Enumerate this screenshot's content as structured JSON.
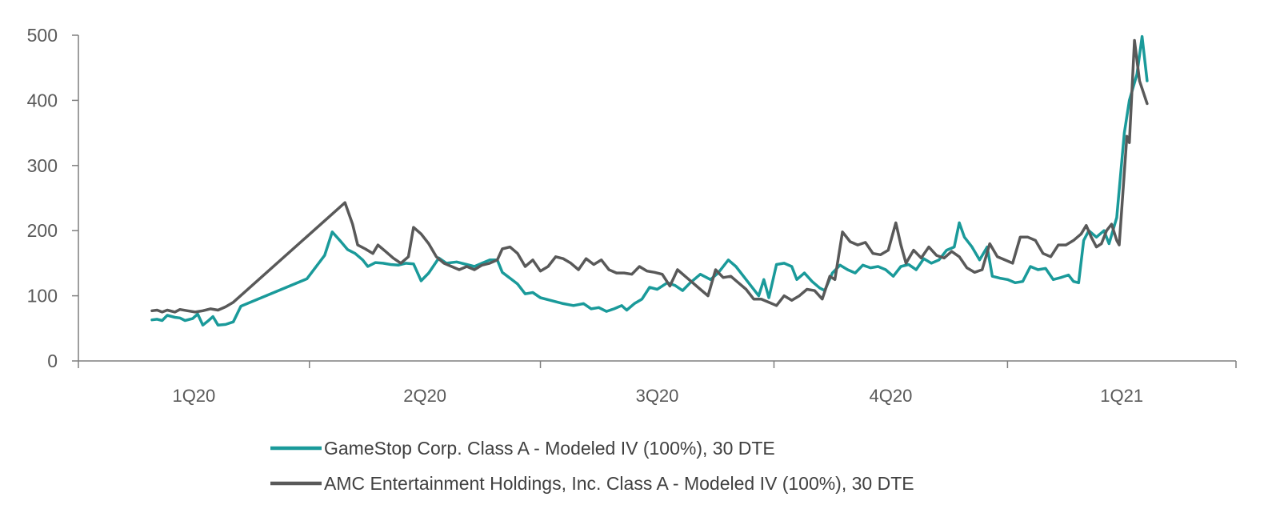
{
  "chart_data": {
    "type": "line",
    "title": "",
    "xlabel": "",
    "ylabel": "",
    "ylim": [
      0,
      500
    ],
    "yticks": [
      "0",
      "100",
      "200",
      "300",
      "400",
      "500"
    ],
    "xlim": [
      "2020-01-01",
      "2021-04-01"
    ],
    "xticks": [
      {
        "label": "1Q20",
        "start": "2020-01-01",
        "end": "2020-04-01"
      },
      {
        "label": "2Q20",
        "start": "2020-04-01",
        "end": "2020-07-01"
      },
      {
        "label": "3Q20",
        "start": "2020-07-01",
        "end": "2020-10-01"
      },
      {
        "label": "4Q20",
        "start": "2020-10-01",
        "end": "2021-01-01"
      },
      {
        "label": "1Q21",
        "start": "2021-01-01",
        "end": "2021-04-01"
      }
    ],
    "grid": false,
    "legend_position": "bottom",
    "colors": {
      "gamestop": "#1a9a9a",
      "amc": "#595959",
      "axis": "#7f7f7f",
      "text": "#595959"
    },
    "series": [
      {
        "name": "GameStop Corp. Class A - Modeled IV (100%), 30 DTE",
        "color": "#1a9a9a",
        "points": [
          [
            "2020-01-30",
            63
          ],
          [
            "2020-02-01",
            64
          ],
          [
            "2020-02-03",
            62
          ],
          [
            "2020-02-05",
            70
          ],
          [
            "2020-02-08",
            67
          ],
          [
            "2020-02-10",
            66
          ],
          [
            "2020-02-12",
            62
          ],
          [
            "2020-02-15",
            65
          ],
          [
            "2020-02-17",
            72
          ],
          [
            "2020-02-19",
            55
          ],
          [
            "2020-02-21",
            61
          ],
          [
            "2020-02-23",
            68
          ],
          [
            "2020-02-25",
            55
          ],
          [
            "2020-02-28",
            56
          ],
          [
            "2020-03-02",
            60
          ],
          [
            "2020-03-05",
            84
          ],
          [
            "2020-03-31",
            126
          ],
          [
            "2020-04-07",
            162
          ],
          [
            "2020-04-10",
            198
          ],
          [
            "2020-04-13",
            185
          ],
          [
            "2020-04-16",
            171
          ],
          [
            "2020-04-19",
            165
          ],
          [
            "2020-04-22",
            155
          ],
          [
            "2020-04-24",
            145
          ],
          [
            "2020-04-27",
            151
          ],
          [
            "2020-04-30",
            150
          ],
          [
            "2020-05-03",
            148
          ],
          [
            "2020-05-06",
            147
          ],
          [
            "2020-05-09",
            150
          ],
          [
            "2020-05-12",
            149
          ],
          [
            "2020-05-15",
            123
          ],
          [
            "2020-05-18",
            135
          ],
          [
            "2020-05-22",
            158
          ],
          [
            "2020-05-25",
            150
          ],
          [
            "2020-05-29",
            152
          ],
          [
            "2020-06-02",
            148
          ],
          [
            "2020-06-05",
            145
          ],
          [
            "2020-06-08",
            150
          ],
          [
            "2020-06-11",
            155
          ],
          [
            "2020-06-14",
            155
          ],
          [
            "2020-06-16",
            136
          ],
          [
            "2020-06-18",
            130
          ],
          [
            "2020-06-22",
            118
          ],
          [
            "2020-06-25",
            103
          ],
          [
            "2020-06-28",
            105
          ],
          [
            "2020-07-01",
            97
          ],
          [
            "2020-07-05",
            93
          ],
          [
            "2020-07-10",
            88
          ],
          [
            "2020-07-14",
            85
          ],
          [
            "2020-07-18",
            88
          ],
          [
            "2020-07-21",
            80
          ],
          [
            "2020-07-24",
            82
          ],
          [
            "2020-07-27",
            76
          ],
          [
            "2020-07-30",
            80
          ],
          [
            "2020-08-02",
            85
          ],
          [
            "2020-08-04",
            78
          ],
          [
            "2020-08-07",
            88
          ],
          [
            "2020-08-10",
            95
          ],
          [
            "2020-08-13",
            113
          ],
          [
            "2020-08-16",
            110
          ],
          [
            "2020-08-20",
            120
          ],
          [
            "2020-08-23",
            116
          ],
          [
            "2020-08-26",
            108
          ],
          [
            "2020-08-29",
            120
          ],
          [
            "2020-09-02",
            133
          ],
          [
            "2020-09-06",
            125
          ],
          [
            "2020-09-09",
            135
          ],
          [
            "2020-09-13",
            155
          ],
          [
            "2020-09-16",
            145
          ],
          [
            "2020-09-19",
            130
          ],
          [
            "2020-09-22",
            115
          ],
          [
            "2020-09-25",
            100
          ],
          [
            "2020-09-27",
            125
          ],
          [
            "2020-09-29",
            97
          ],
          [
            "2020-10-02",
            148
          ],
          [
            "2020-10-05",
            150
          ],
          [
            "2020-10-08",
            145
          ],
          [
            "2020-10-10",
            125
          ],
          [
            "2020-10-13",
            135
          ],
          [
            "2020-10-16",
            122
          ],
          [
            "2020-10-19",
            112
          ],
          [
            "2020-10-21",
            108
          ],
          [
            "2020-10-24",
            135
          ],
          [
            "2020-10-27",
            147
          ],
          [
            "2020-10-30",
            140
          ],
          [
            "2020-11-02",
            135
          ],
          [
            "2020-11-05",
            147
          ],
          [
            "2020-11-08",
            143
          ],
          [
            "2020-11-11",
            145
          ],
          [
            "2020-11-14",
            140
          ],
          [
            "2020-11-17",
            130
          ],
          [
            "2020-11-20",
            145
          ],
          [
            "2020-11-23",
            148
          ],
          [
            "2020-11-26",
            140
          ],
          [
            "2020-11-29",
            157
          ],
          [
            "2020-12-02",
            150
          ],
          [
            "2020-12-05",
            155
          ],
          [
            "2020-12-08",
            170
          ],
          [
            "2020-12-11",
            175
          ],
          [
            "2020-12-13",
            212
          ],
          [
            "2020-12-15",
            190
          ],
          [
            "2020-12-18",
            175
          ],
          [
            "2020-12-21",
            155
          ],
          [
            "2020-12-24",
            175
          ],
          [
            "2020-12-26",
            130
          ],
          [
            "2020-12-29",
            127
          ],
          [
            "2021-01-01",
            125
          ],
          [
            "2021-01-04",
            120
          ],
          [
            "2021-01-07",
            122
          ],
          [
            "2021-01-10",
            145
          ],
          [
            "2021-01-13",
            140
          ],
          [
            "2021-01-16",
            142
          ],
          [
            "2021-01-19",
            125
          ],
          [
            "2021-01-22",
            128
          ],
          [
            "2021-01-25",
            132
          ],
          [
            "2021-01-27",
            122
          ],
          [
            "2021-01-29",
            120
          ],
          [
            "2021-01-31",
            185
          ],
          [
            "2021-02-02",
            200
          ],
          [
            "2021-02-05",
            190
          ],
          [
            "2021-02-08",
            200
          ],
          [
            "2021-02-10",
            180
          ],
          [
            "2021-02-13",
            220
          ],
          [
            "2021-02-16",
            350
          ],
          [
            "2021-02-18",
            400
          ],
          [
            "2021-02-21",
            440
          ],
          [
            "2021-02-23",
            498
          ],
          [
            "2021-02-25",
            430
          ]
        ]
      },
      {
        "name": "AMC Entertainment Holdings, Inc. Class A - Modeled IV (100%), 30 DTE",
        "color": "#595959",
        "points": [
          [
            "2020-01-30",
            77
          ],
          [
            "2020-02-01",
            78
          ],
          [
            "2020-02-03",
            75
          ],
          [
            "2020-02-05",
            78
          ],
          [
            "2020-02-08",
            75
          ],
          [
            "2020-02-10",
            79
          ],
          [
            "2020-02-13",
            77
          ],
          [
            "2020-02-16",
            75
          ],
          [
            "2020-02-19",
            77
          ],
          [
            "2020-02-22",
            80
          ],
          [
            "2020-02-25",
            78
          ],
          [
            "2020-02-28",
            83
          ],
          [
            "2020-03-02",
            90
          ],
          [
            "2020-04-15",
            243
          ],
          [
            "2020-04-18",
            210
          ],
          [
            "2020-04-20",
            178
          ],
          [
            "2020-04-23",
            172
          ],
          [
            "2020-04-26",
            165
          ],
          [
            "2020-04-28",
            178
          ],
          [
            "2020-05-01",
            168
          ],
          [
            "2020-05-04",
            158
          ],
          [
            "2020-05-07",
            150
          ],
          [
            "2020-05-10",
            160
          ],
          [
            "2020-05-12",
            205
          ],
          [
            "2020-05-15",
            195
          ],
          [
            "2020-05-18",
            180
          ],
          [
            "2020-05-21",
            160
          ],
          [
            "2020-05-24",
            150
          ],
          [
            "2020-05-27",
            145
          ],
          [
            "2020-05-30",
            140
          ],
          [
            "2020-06-02",
            145
          ],
          [
            "2020-06-05",
            140
          ],
          [
            "2020-06-08",
            147
          ],
          [
            "2020-06-11",
            150
          ],
          [
            "2020-06-14",
            155
          ],
          [
            "2020-06-16",
            172
          ],
          [
            "2020-06-19",
            175
          ],
          [
            "2020-06-22",
            165
          ],
          [
            "2020-06-25",
            145
          ],
          [
            "2020-06-28",
            155
          ],
          [
            "2020-07-01",
            138
          ],
          [
            "2020-07-04",
            145
          ],
          [
            "2020-07-07",
            160
          ],
          [
            "2020-07-10",
            157
          ],
          [
            "2020-07-13",
            150
          ],
          [
            "2020-07-16",
            140
          ],
          [
            "2020-07-19",
            157
          ],
          [
            "2020-07-22",
            148
          ],
          [
            "2020-07-25",
            155
          ],
          [
            "2020-07-28",
            140
          ],
          [
            "2020-07-31",
            135
          ],
          [
            "2020-08-03",
            135
          ],
          [
            "2020-08-06",
            133
          ],
          [
            "2020-08-09",
            145
          ],
          [
            "2020-08-12",
            138
          ],
          [
            "2020-08-15",
            136
          ],
          [
            "2020-08-18",
            133
          ],
          [
            "2020-08-21",
            115
          ],
          [
            "2020-08-24",
            140
          ],
          [
            "2020-08-27",
            130
          ],
          [
            "2020-08-30",
            120
          ],
          [
            "2020-09-02",
            110
          ],
          [
            "2020-09-05",
            100
          ],
          [
            "2020-09-08",
            140
          ],
          [
            "2020-09-11",
            128
          ],
          [
            "2020-09-14",
            130
          ],
          [
            "2020-09-17",
            120
          ],
          [
            "2020-09-20",
            110
          ],
          [
            "2020-09-23",
            95
          ],
          [
            "2020-09-26",
            95
          ],
          [
            "2020-09-29",
            90
          ],
          [
            "2020-10-02",
            85
          ],
          [
            "2020-10-05",
            100
          ],
          [
            "2020-10-08",
            93
          ],
          [
            "2020-10-11",
            100
          ],
          [
            "2020-10-14",
            110
          ],
          [
            "2020-10-17",
            108
          ],
          [
            "2020-10-20",
            95
          ],
          [
            "2020-10-23",
            130
          ],
          [
            "2020-10-25",
            125
          ],
          [
            "2020-10-28",
            198
          ],
          [
            "2020-10-31",
            183
          ],
          [
            "2020-11-03",
            178
          ],
          [
            "2020-11-06",
            182
          ],
          [
            "2020-11-09",
            165
          ],
          [
            "2020-11-12",
            163
          ],
          [
            "2020-11-15",
            170
          ],
          [
            "2020-11-18",
            212
          ],
          [
            "2020-11-20",
            178
          ],
          [
            "2020-11-22",
            150
          ],
          [
            "2020-11-25",
            170
          ],
          [
            "2020-11-28",
            158
          ],
          [
            "2020-12-01",
            175
          ],
          [
            "2020-12-04",
            162
          ],
          [
            "2020-12-07",
            158
          ],
          [
            "2020-12-10",
            168
          ],
          [
            "2020-12-13",
            160
          ],
          [
            "2020-12-16",
            143
          ],
          [
            "2020-12-19",
            136
          ],
          [
            "2020-12-22",
            140
          ],
          [
            "2020-12-25",
            180
          ],
          [
            "2020-12-28",
            160
          ],
          [
            "2020-12-31",
            155
          ],
          [
            "2021-01-03",
            150
          ],
          [
            "2021-01-06",
            190
          ],
          [
            "2021-01-09",
            190
          ],
          [
            "2021-01-12",
            185
          ],
          [
            "2021-01-15",
            165
          ],
          [
            "2021-01-18",
            160
          ],
          [
            "2021-01-21",
            178
          ],
          [
            "2021-01-24",
            178
          ],
          [
            "2021-01-27",
            185
          ],
          [
            "2021-01-30",
            195
          ],
          [
            "2021-02-01",
            208
          ],
          [
            "2021-02-03",
            190
          ],
          [
            "2021-02-05",
            175
          ],
          [
            "2021-02-07",
            180
          ],
          [
            "2021-02-09",
            200
          ],
          [
            "2021-02-11",
            210
          ],
          [
            "2021-02-13",
            185
          ],
          [
            "2021-02-14",
            178
          ],
          [
            "2021-02-17",
            345
          ],
          [
            "2021-02-18",
            335
          ],
          [
            "2021-02-20",
            492
          ],
          [
            "2021-02-22",
            430
          ],
          [
            "2021-02-25",
            395
          ]
        ]
      }
    ]
  }
}
